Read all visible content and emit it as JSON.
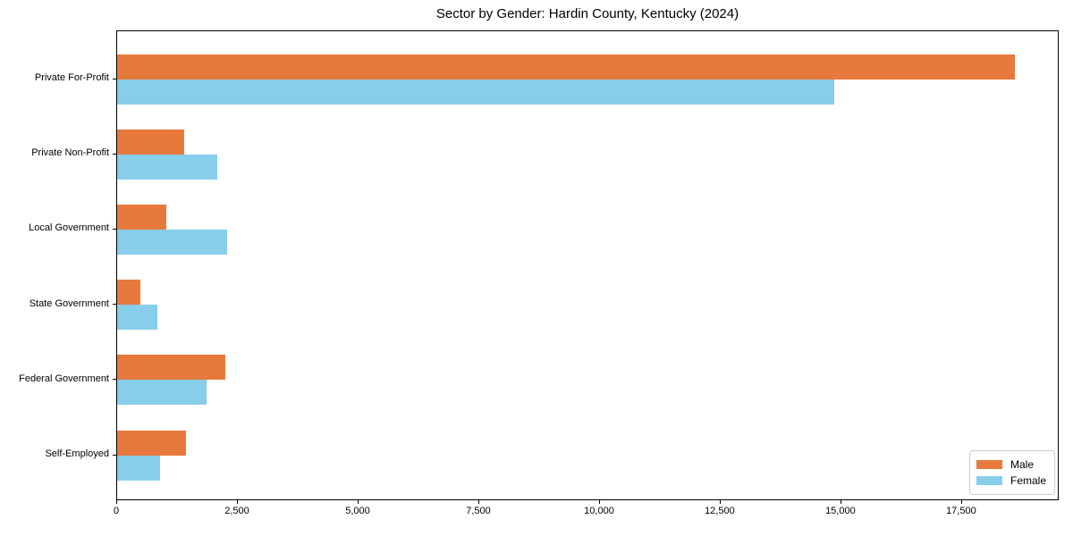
{
  "chart_data": {
    "type": "bar",
    "orientation": "horizontal",
    "title": "Sector by Gender: Hardin County, Kentucky (2024)",
    "categories": [
      "Private For-Profit",
      "Private Non-Profit",
      "Local Government",
      "State Government",
      "Federal Government",
      "Self-Employed"
    ],
    "series": [
      {
        "name": "Male",
        "color": "#e8793d",
        "values": [
          18600,
          1390,
          1020,
          480,
          2240,
          1430
        ]
      },
      {
        "name": "Female",
        "color": "#87ceeb",
        "values": [
          14860,
          2080,
          2270,
          830,
          1850,
          880
        ]
      }
    ],
    "xlabel": "",
    "ylabel": "",
    "xlim": [
      0,
      19520
    ],
    "xticks": [
      0,
      2500,
      5000,
      7500,
      10000,
      12500,
      15000,
      17500
    ],
    "xtick_labels": [
      "0",
      "2,500",
      "5,000",
      "7,500",
      "10,000",
      "12,500",
      "15,000",
      "17,500"
    ],
    "grid": false,
    "legend": {
      "position": "lower right",
      "entries": [
        "Male",
        "Female"
      ]
    },
    "colors": {
      "male": "#e8793d",
      "female": "#87ceeb",
      "spine": "#000000",
      "background": "#ffffff"
    }
  }
}
